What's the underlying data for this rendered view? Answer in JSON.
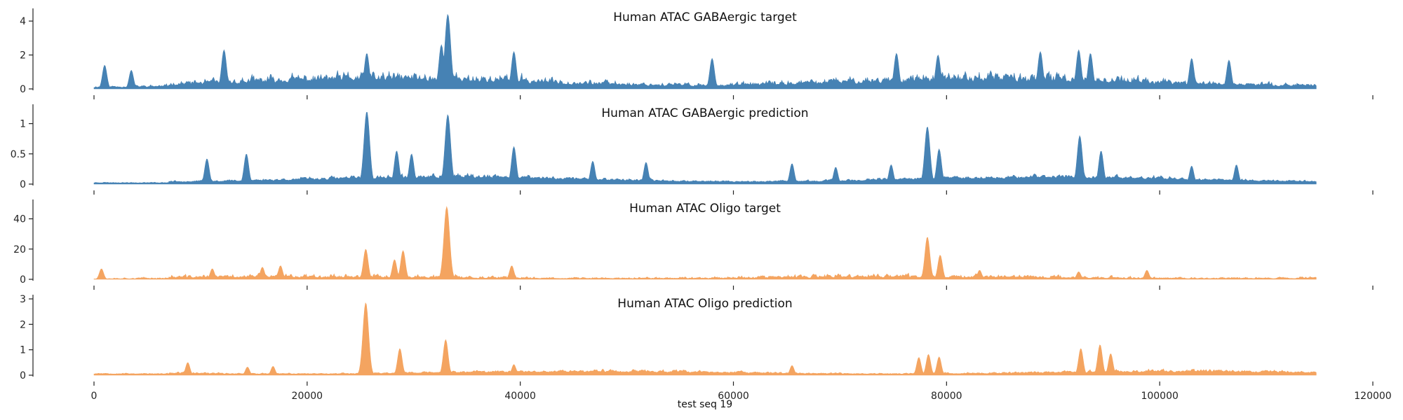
{
  "chart_data": {
    "type": "area",
    "xlabel": "test seq 19",
    "xlim": [
      0,
      120000
    ],
    "x_ticks": [
      0,
      20000,
      40000,
      60000,
      80000,
      100000,
      120000
    ],
    "data_x_range": [
      0,
      114688
    ],
    "panels": [
      {
        "title": "Human ATAC GABAergic target",
        "color": "#4682b4",
        "ylim": [
          0,
          4.5
        ],
        "y_ticks": [
          0,
          2,
          4
        ],
        "seed": 11,
        "baseline": 0.35,
        "noise": 0.9,
        "spikiness": 0.55,
        "peaks": [
          {
            "x": 33200,
            "y": 4.4
          },
          {
            "x": 32600,
            "y": 2.6
          },
          {
            "x": 12200,
            "y": 2.3
          },
          {
            "x": 25600,
            "y": 2.1
          },
          {
            "x": 39400,
            "y": 2.2
          },
          {
            "x": 75300,
            "y": 2.1
          },
          {
            "x": 79200,
            "y": 2.0
          },
          {
            "x": 88800,
            "y": 2.2
          },
          {
            "x": 92400,
            "y": 2.3
          },
          {
            "x": 93500,
            "y": 2.1
          },
          {
            "x": 58000,
            "y": 1.8
          },
          {
            "x": 103000,
            "y": 1.8
          },
          {
            "x": 106500,
            "y": 1.7
          },
          {
            "x": 3500,
            "y": 1.1
          },
          {
            "x": 1000,
            "y": 1.4
          }
        ]
      },
      {
        "title": "Human ATAC GABAergic prediction",
        "color": "#4682b4",
        "ylim": [
          0,
          1.25
        ],
        "y_ticks": [
          0.0,
          0.5,
          1.0
        ],
        "seed": 23,
        "baseline": 0.08,
        "noise": 0.12,
        "spikiness": 0.35,
        "peaks": [
          {
            "x": 25600,
            "y": 1.2
          },
          {
            "x": 33200,
            "y": 1.15
          },
          {
            "x": 78200,
            "y": 0.95
          },
          {
            "x": 92500,
            "y": 0.8
          },
          {
            "x": 39400,
            "y": 0.62
          },
          {
            "x": 14300,
            "y": 0.5
          },
          {
            "x": 28400,
            "y": 0.55
          },
          {
            "x": 29800,
            "y": 0.5
          },
          {
            "x": 46800,
            "y": 0.38
          },
          {
            "x": 51800,
            "y": 0.36
          },
          {
            "x": 65500,
            "y": 0.34
          },
          {
            "x": 69600,
            "y": 0.28
          },
          {
            "x": 10600,
            "y": 0.42
          },
          {
            "x": 79300,
            "y": 0.58
          },
          {
            "x": 94500,
            "y": 0.55
          },
          {
            "x": 107200,
            "y": 0.32
          },
          {
            "x": 103000,
            "y": 0.3
          },
          {
            "x": 74800,
            "y": 0.32
          }
        ]
      },
      {
        "title": "Human ATAC Oligo target",
        "color": "#f4a460",
        "ylim": [
          0,
          50
        ],
        "y_ticks": [
          0,
          20,
          40
        ],
        "seed": 37,
        "baseline": 0.8,
        "noise": 3.5,
        "spikiness": 0.8,
        "peaks": [
          {
            "x": 33100,
            "y": 48
          },
          {
            "x": 78200,
            "y": 28
          },
          {
            "x": 25500,
            "y": 20
          },
          {
            "x": 29000,
            "y": 19
          },
          {
            "x": 79400,
            "y": 16
          },
          {
            "x": 28200,
            "y": 13
          },
          {
            "x": 17500,
            "y": 9
          },
          {
            "x": 39200,
            "y": 9
          },
          {
            "x": 15800,
            "y": 8
          },
          {
            "x": 700,
            "y": 7
          },
          {
            "x": 11100,
            "y": 7
          },
          {
            "x": 98800,
            "y": 6
          },
          {
            "x": 83100,
            "y": 6
          },
          {
            "x": 92400,
            "y": 5
          }
        ]
      },
      {
        "title": "Human ATAC Oligo prediction",
        "color": "#f4a460",
        "ylim": [
          0,
          3.0
        ],
        "y_ticks": [
          0,
          1,
          2,
          3
        ],
        "seed": 53,
        "baseline": 0.1,
        "noise": 0.2,
        "spikiness": 0.35,
        "peaks": [
          {
            "x": 25500,
            "y": 2.85
          },
          {
            "x": 33000,
            "y": 1.4
          },
          {
            "x": 94400,
            "y": 1.2
          },
          {
            "x": 92600,
            "y": 1.05
          },
          {
            "x": 28700,
            "y": 1.05
          },
          {
            "x": 95400,
            "y": 0.85
          },
          {
            "x": 78300,
            "y": 0.82
          },
          {
            "x": 77400,
            "y": 0.7
          },
          {
            "x": 79300,
            "y": 0.72
          },
          {
            "x": 8800,
            "y": 0.5
          },
          {
            "x": 39400,
            "y": 0.42
          },
          {
            "x": 65500,
            "y": 0.38
          },
          {
            "x": 14400,
            "y": 0.32
          },
          {
            "x": 16800,
            "y": 0.35
          }
        ]
      }
    ]
  }
}
